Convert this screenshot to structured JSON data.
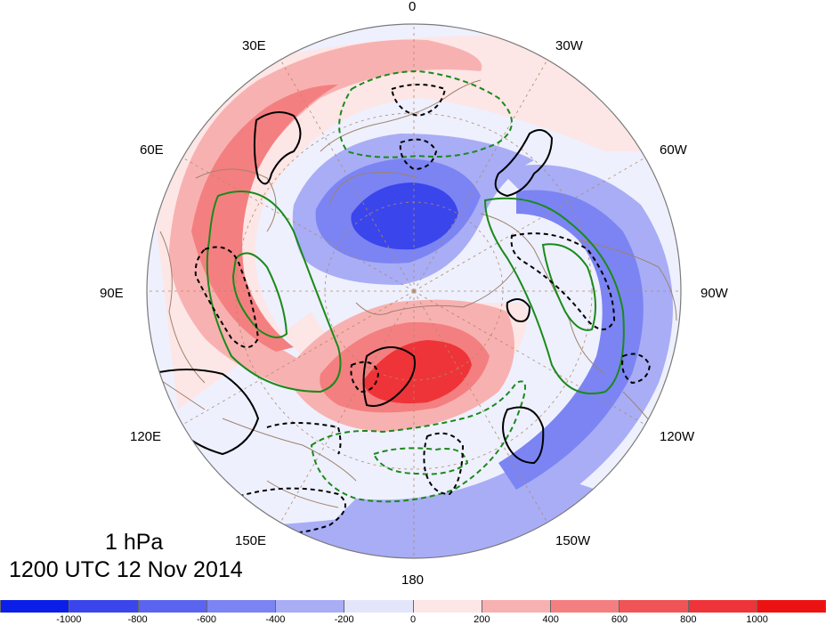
{
  "lon_labels": {
    "lon_0": "0",
    "lon_30e": "30E",
    "lon_30w": "30W",
    "lon_60e": "60E",
    "lon_60w": "60W",
    "lon_90e": "90E",
    "lon_90w": "90W",
    "lon_120e": "120E",
    "lon_120w": "120W",
    "lon_150e": "150E",
    "lon_150w": "150W",
    "lon_180": "180"
  },
  "caption": {
    "level": "1 hPa",
    "time": "1200 UTC 12 Nov 2014"
  },
  "colorbar": {
    "colors": [
      "#0a1ee8",
      "#3a45ec",
      "#5a64ef",
      "#7b84f2",
      "#a8adf6",
      "#e3e5fb",
      "#fde6e6",
      "#f8b1b1",
      "#f47f80",
      "#f05457",
      "#ee3438",
      "#ec1212"
    ],
    "ticks": [
      "-1000",
      "-800",
      "-600",
      "-400",
      "-200",
      "0",
      "200",
      "400",
      "600",
      "800",
      "1000"
    ]
  },
  "legend_colors": {
    "positive_fill": "#f05457",
    "negative_fill": "#5a64ef",
    "black_contour": "#000000",
    "green_contour": "#1a8a1a",
    "coastline": "#a0826d"
  }
}
